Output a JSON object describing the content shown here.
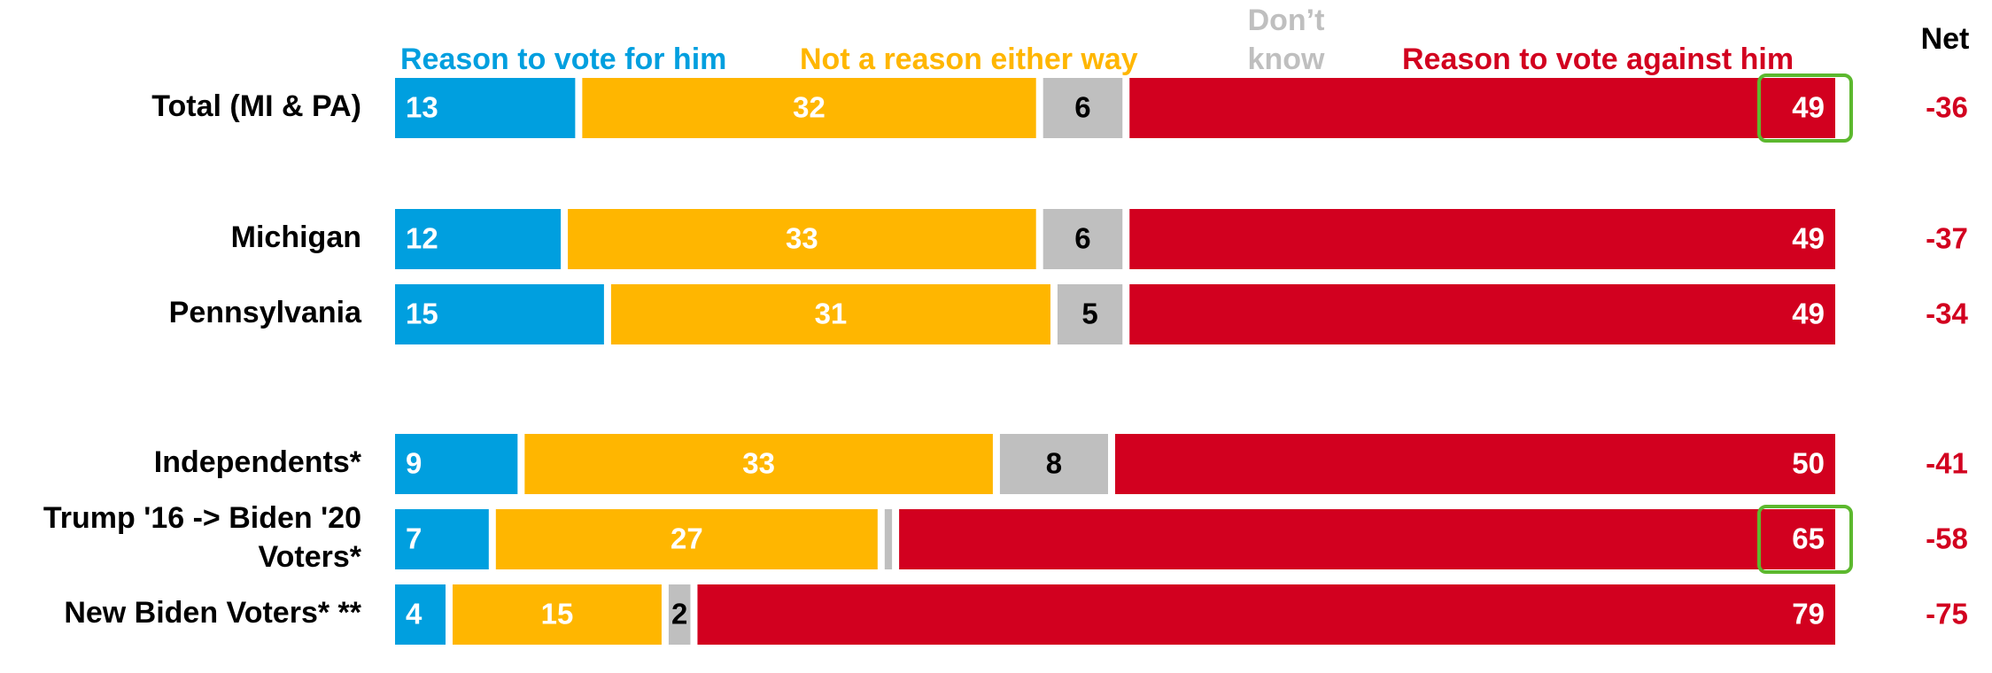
{
  "chart_data": {
    "type": "bar",
    "orientation": "horizontal",
    "stacked": true,
    "legend_position": "top",
    "grid": false,
    "net_header": "Net",
    "series": [
      {
        "name": "Reason to vote for him",
        "color": "#009fdf",
        "text_color": "#ffffff"
      },
      {
        "name": "Not a reason either way",
        "color": "#ffb600",
        "text_color": "#ffffff"
      },
      {
        "name": "Don’t know",
        "color": "#bfbfbf",
        "text_color": "#000000"
      },
      {
        "name": "Reason to vote against him",
        "color": "#d2001f",
        "text_color": "#ffffff"
      }
    ],
    "legend_dont_know_lines": [
      "Don’t",
      "know"
    ],
    "rows": [
      {
        "label_lines": [
          "Total (MI & PA)"
        ],
        "values": [
          13,
          32,
          6,
          49
        ],
        "value_labels": [
          "13",
          "32",
          "6",
          "49"
        ],
        "net": "-36",
        "highlight": true
      },
      {
        "label_lines": [
          "Michigan"
        ],
        "values": [
          12,
          33,
          6,
          49
        ],
        "value_labels": [
          "12",
          "33",
          "6",
          "49"
        ],
        "net": "-37",
        "highlight": false
      },
      {
        "label_lines": [
          "Pennsylvania"
        ],
        "values": [
          15,
          31,
          5,
          49
        ],
        "value_labels": [
          "15",
          "31",
          "5",
          "49"
        ],
        "net": "-34",
        "highlight": false
      },
      {
        "label_lines": [
          "Independents*"
        ],
        "values": [
          9,
          33,
          8,
          50
        ],
        "value_labels": [
          "9",
          "33",
          "8",
          "50"
        ],
        "net": "-41",
        "highlight": false
      },
      {
        "label_lines": [
          "Trump '16 -> Biden '20",
          "Voters*"
        ],
        "values": [
          7,
          27,
          1,
          65
        ],
        "value_labels": [
          "7",
          "27",
          "",
          "65"
        ],
        "net": "-58",
        "highlight": true
      },
      {
        "label_lines": [
          "New Biden Voters* **"
        ],
        "values": [
          4,
          15,
          2,
          79
        ],
        "value_labels": [
          "4",
          "15",
          "2",
          "79"
        ],
        "net": "-75",
        "highlight": false
      }
    ],
    "net_color": "#d2001f",
    "highlight_color": "#5cb82e"
  }
}
